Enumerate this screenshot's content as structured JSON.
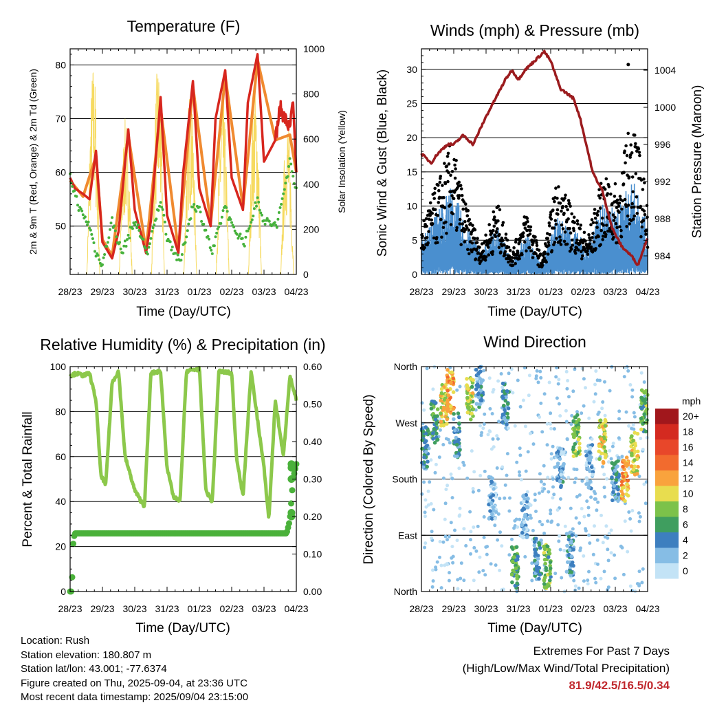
{
  "chart_data": [
    {
      "type": "line",
      "title": "Temperature (F)",
      "xlabel": "Time (Day/UTC)",
      "ylabel": "2m & 9m T (Red, Orange) & 2m Td (Green)",
      "y2label": "Solar Insolation (Yellow)",
      "x_ticks": [
        "28/23",
        "29/23",
        "30/23",
        "31/23",
        "01/23",
        "02/23",
        "03/23",
        "04/23"
      ],
      "ylim": [
        41,
        83
      ],
      "y_ticks": [
        50,
        60,
        70,
        80
      ],
      "y2lim": [
        0,
        1000
      ],
      "y2_ticks": [
        0,
        200,
        400,
        600,
        800,
        1000
      ],
      "grid": true,
      "series": [
        {
          "color": "#d7261e",
          "x": [
            0,
            0.15,
            0.4,
            0.6,
            0.8,
            1.0,
            1.3,
            1.5,
            1.8,
            2.0,
            2.35,
            2.5,
            2.8,
            3.0,
            3.35,
            3.5,
            3.8,
            4.0,
            4.35,
            4.5,
            4.8,
            5.0,
            5.35,
            5.5,
            5.8,
            6.0,
            6.35,
            6.5,
            6.8,
            6.9,
            7.0
          ],
          "values": [
            59,
            57,
            56,
            55,
            64,
            47,
            44,
            49,
            68,
            53,
            45,
            51,
            74,
            52,
            45,
            60,
            77,
            57,
            50,
            70,
            79,
            59,
            53,
            73,
            82,
            62,
            66,
            72,
            68,
            73,
            60
          ]
        },
        {
          "color": "#f08a30",
          "x": [
            0,
            0.4,
            0.8,
            1.0,
            1.3,
            1.8,
            2.35,
            2.8,
            3.35,
            3.8,
            4.35,
            4.8,
            5.35,
            5.8,
            6.35,
            6.8,
            7.0
          ],
          "values": [
            58.5,
            55.5,
            63,
            47.5,
            44.5,
            67,
            45.5,
            72,
            45.5,
            76,
            50.5,
            78,
            53.5,
            81,
            66,
            67,
            60
          ]
        },
        {
          "color": "#46b23c",
          "x": [
            0,
            0.3,
            0.6,
            0.8,
            1.0,
            1.3,
            1.6,
            2.0,
            2.4,
            2.8,
            3.0,
            3.4,
            3.8,
            4.0,
            4.4,
            4.8,
            5.0,
            5.4,
            5.8,
            6.0,
            6.4,
            6.8,
            7.0
          ],
          "values": [
            59,
            53,
            50,
            45,
            43,
            51,
            45,
            51,
            45,
            55,
            48,
            43,
            54,
            53,
            45,
            54,
            50,
            47,
            55,
            51,
            50,
            62,
            57
          ]
        },
        {
          "color": "#f6da60",
          "label": "solar",
          "day_peaks": [
            950,
            700,
            940,
            850,
            820,
            840,
            700,
            350
          ]
        }
      ]
    },
    {
      "type": "scatter",
      "title": "Winds (mph) & Pressure (mb)",
      "xlabel": "Time (Day/UTC)",
      "ylabel": "Sonic Wind & Gust (Blue, Black)",
      "y2label": "Station Pressure (Maroon)",
      "x_ticks": [
        "28/23",
        "29/23",
        "30/23",
        "31/23",
        "01/23",
        "02/23",
        "03/23",
        "04/23"
      ],
      "ylim": [
        0,
        33
      ],
      "y_ticks": [
        0,
        5,
        10,
        15,
        20,
        25,
        30
      ],
      "y2lim": [
        982.0,
        1006.3
      ],
      "y2_ticks": [
        984,
        988,
        992,
        996,
        1000,
        1004
      ],
      "grid": true,
      "wind_levels_blue": [
        4,
        8,
        11,
        6,
        3,
        6,
        2,
        5,
        1.5,
        7,
        6,
        3.5,
        9,
        8,
        12,
        6
      ],
      "gust_levels_black": [
        7,
        12,
        18,
        9,
        4,
        10,
        3,
        9,
        2,
        13,
        9,
        5,
        13,
        12,
        22,
        10
      ],
      "max_gust": 30.7,
      "pressure": {
        "color": "#9b1b1e",
        "x": [
          0,
          0.3,
          0.5,
          0.8,
          1.0,
          1.3,
          1.6,
          2.0,
          2.3,
          2.6,
          2.8,
          3.0,
          3.2,
          3.5,
          3.8,
          4.0,
          4.3,
          4.7,
          4.9,
          5.1,
          5.3,
          5.6,
          5.9,
          6.2,
          6.5,
          6.7,
          6.9,
          7.0
        ],
        "values": [
          995,
          994,
          995,
          996,
          996,
          997,
          996,
          999,
          1001,
          1003,
          1004,
          1003,
          1004,
          1005,
          1006,
          1005,
          1002,
          1001,
          999,
          996,
          993,
          991,
          987,
          985,
          984,
          983,
          985,
          986
        ]
      }
    },
    {
      "type": "line",
      "title": "Relative Humidity (%) & Precipitation (in)",
      "xlabel": "Time (Day/UTC)",
      "ylabel": "Percent & Total Rainfall",
      "x_ticks": [
        "28/23",
        "29/23",
        "30/23",
        "31/23",
        "01/23",
        "02/23",
        "03/23",
        "04/23"
      ],
      "ylim": [
        0,
        100
      ],
      "y_ticks": [
        0,
        20,
        40,
        60,
        80,
        100
      ],
      "y2lim": [
        0,
        0.6
      ],
      "y2_ticks": [
        "0.00",
        "0.10",
        "0.20",
        "0.30",
        "0.40",
        "0.50",
        "0.60"
      ],
      "grid": true,
      "series": [
        {
          "color": "#8cc84b",
          "x": [
            0,
            0.2,
            0.4,
            0.6,
            0.8,
            0.95,
            1.1,
            1.3,
            1.5,
            1.7,
            2.0,
            2.2,
            2.3,
            2.5,
            2.8,
            3.0,
            3.2,
            3.4,
            3.6,
            4.0,
            4.2,
            4.4,
            4.6,
            5.0,
            5.15,
            5.35,
            5.6,
            6.0,
            6.15,
            6.35,
            6.6,
            6.8,
            7.0
          ],
          "values": [
            96,
            97,
            96,
            97,
            85,
            52,
            47,
            93,
            98,
            60,
            45,
            40,
            38,
            97,
            98,
            55,
            42,
            40,
            98,
            99,
            45,
            40,
            98,
            97,
            60,
            42,
            98,
            55,
            32,
            85,
            60,
            96,
            85
          ]
        },
        {
          "color": "#4ab13a",
          "label": "precip",
          "x": [
            0,
            0.05,
            0.1,
            0.15,
            6.7,
            6.8,
            6.9,
            7.0
          ],
          "values": [
            0,
            0,
            0.14,
            0.155,
            0.155,
            0.19,
            0.3,
            0.34
          ]
        }
      ]
    },
    {
      "type": "scatter",
      "title": "Wind Direction",
      "xlabel": "Time (Day/UTC)",
      "ylabel": "Direction (Colored By Speed)",
      "x_ticks": [
        "28/23",
        "29/23",
        "30/23",
        "31/23",
        "01/23",
        "02/23",
        "03/23",
        "04/23"
      ],
      "y_ticks": [
        "North",
        "East",
        "South",
        "West",
        "North"
      ],
      "ylim": [
        0,
        360
      ],
      "legend_title": "mph",
      "legend_labels": [
        "20+",
        "18",
        "16",
        "14",
        "12",
        "10",
        "8",
        "6",
        "4",
        "2",
        "0"
      ],
      "legend_colors": [
        "#a1171c",
        "#d42a20",
        "#e8472a",
        "#f26b2e",
        "#f9a33d",
        "#e8dd4f",
        "#7cc24a",
        "#3f9e5f",
        "#3d7fbf",
        "#86bde5",
        "#c3e3f6"
      ],
      "clusters": [
        {
          "x": 0.1,
          "dir": 230,
          "spd": 4
        },
        {
          "x": 0.4,
          "dir": 270,
          "spd": 6
        },
        {
          "x": 0.7,
          "dir": 300,
          "spd": 10
        },
        {
          "x": 0.9,
          "dir": 320,
          "spd": 12
        },
        {
          "x": 1.1,
          "dir": 250,
          "spd": 4
        },
        {
          "x": 1.5,
          "dir": 310,
          "spd": 9
        },
        {
          "x": 1.8,
          "dir": 330,
          "spd": 3
        },
        {
          "x": 2.2,
          "dir": 150,
          "spd": 2
        },
        {
          "x": 2.6,
          "dir": 300,
          "spd": 4
        },
        {
          "x": 2.9,
          "dir": 40,
          "spd": 6
        },
        {
          "x": 3.2,
          "dir": 120,
          "spd": 2
        },
        {
          "x": 3.6,
          "dir": 50,
          "spd": 4
        },
        {
          "x": 3.9,
          "dir": 40,
          "spd": 7
        },
        {
          "x": 4.3,
          "dir": 200,
          "spd": 3
        },
        {
          "x": 4.6,
          "dir": 60,
          "spd": 4
        },
        {
          "x": 4.8,
          "dir": 250,
          "spd": 8
        },
        {
          "x": 5.2,
          "dir": 200,
          "spd": 2
        },
        {
          "x": 5.6,
          "dir": 240,
          "spd": 10
        },
        {
          "x": 6.0,
          "dir": 180,
          "spd": 4
        },
        {
          "x": 6.3,
          "dir": 180,
          "spd": 12
        },
        {
          "x": 6.6,
          "dir": 220,
          "spd": 10
        },
        {
          "x": 6.9,
          "dir": 290,
          "spd": 7
        }
      ]
    }
  ],
  "info": {
    "location": "Location: Rush",
    "elevation": "Station elevation: 180.807 m",
    "latlon": "Station lat/lon: 43.001; -77.6374",
    "created": "Figure created on Thu, 2025-09-04, at 23:36 UTC",
    "recent": "Most recent data timestamp: 2025/09/04 23:15:00"
  },
  "extremes": {
    "title": "Extremes For Past 7 Days",
    "subtitle": "(High/Low/Max Wind/Total Precipitation)",
    "values": "81.9/42.5/16.5/0.34"
  }
}
